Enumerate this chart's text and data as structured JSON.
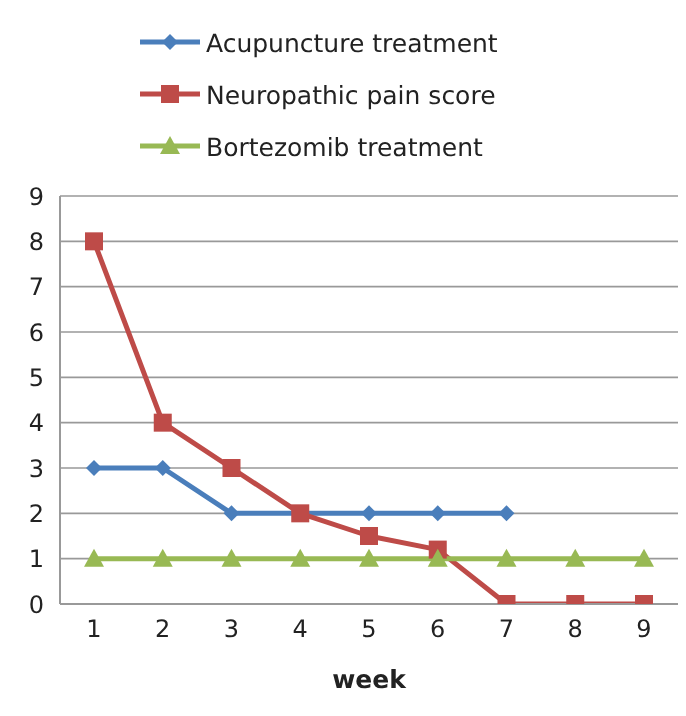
{
  "chart_data": {
    "type": "line",
    "xlabel": "week",
    "categories": [
      "1",
      "2",
      "3",
      "4",
      "5",
      "6",
      "7",
      "8",
      "9"
    ],
    "series": [
      {
        "name": "Acupuncture treatment",
        "color": "#4a7ebb",
        "marker": "diamond",
        "values": [
          3,
          3,
          2,
          2,
          2,
          2,
          2,
          null,
          null
        ]
      },
      {
        "name": "Neuropathic pain score",
        "color": "#be4b48",
        "marker": "square",
        "values": [
          8,
          4,
          3,
          2,
          1.5,
          1.2,
          0,
          0,
          0
        ]
      },
      {
        "name": "Bortezomib treatment",
        "color": "#98b954",
        "marker": "triangle",
        "values": [
          1,
          1,
          1,
          1,
          1,
          1,
          1,
          1,
          1
        ]
      }
    ],
    "ylim": [
      0,
      9
    ],
    "yticks": [
      0,
      1,
      2,
      3,
      4,
      5,
      6,
      7,
      8,
      9
    ],
    "grid": "y",
    "legend": "top",
    "line_style": "solid"
  }
}
